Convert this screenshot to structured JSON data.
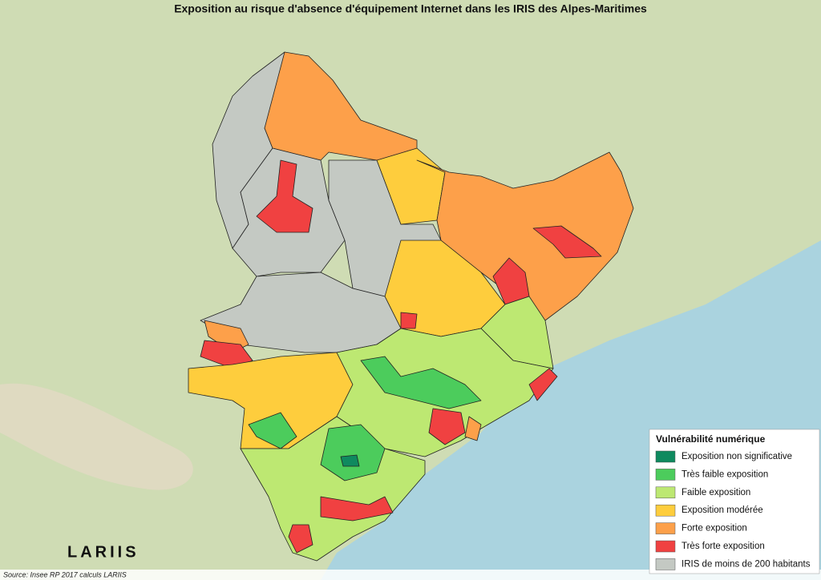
{
  "title": "Exposition au risque d'absence d'équipement Internet dans les IRIS des Alpes-Maritimes",
  "legend": {
    "title": "Vulnérabilité numérique",
    "items": [
      {
        "label": "Exposition non significative",
        "color": "#0f8a5f"
      },
      {
        "label": "Très faible exposition",
        "color": "#4ccc5c"
      },
      {
        "label": "Faible exposition",
        "color": "#bde872"
      },
      {
        "label": "Exposition modérée",
        "color": "#fecd3d"
      },
      {
        "label": "Forte exposition",
        "color": "#fda04a"
      },
      {
        "label": "Très forte exposition",
        "color": "#f04141"
      },
      {
        "label": "IRIS de moins de 200 habitants",
        "color": "#c4c9c3"
      }
    ]
  },
  "logo": "LARIIS",
  "source": "Source: Insee RP 2017 calculs LARIIS"
}
